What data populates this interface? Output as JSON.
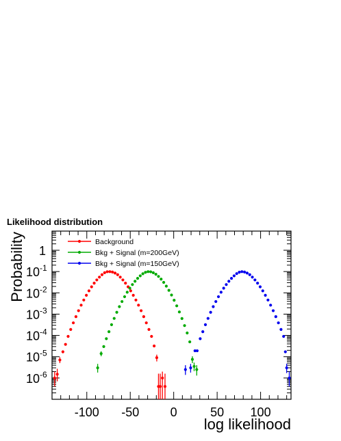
{
  "chart_data": {
    "type": "scatter",
    "title": "Likelihood distribution",
    "xlabel": "log likelihood",
    "ylabel": "Probability",
    "xlim": [
      -140,
      135
    ],
    "ylim_log10": [
      -7,
      0.9
    ],
    "log_y": true,
    "x_ticks": [
      {
        "value": -100,
        "label": "-100"
      },
      {
        "value": -50,
        "label": "-50"
      },
      {
        "value": 0,
        "label": "0"
      },
      {
        "value": 50,
        "label": "50"
      },
      {
        "value": 100,
        "label": "100"
      }
    ],
    "y_ticks": [
      {
        "exp": 0,
        "base": "1",
        "sup": ""
      },
      {
        "exp": -1,
        "base": "10",
        "sup": "-1"
      },
      {
        "exp": -2,
        "base": "10",
        "sup": "-2"
      },
      {
        "exp": -3,
        "base": "10",
        "sup": "-3"
      },
      {
        "exp": -4,
        "base": "10",
        "sup": "-4"
      },
      {
        "exp": -5,
        "base": "10",
        "sup": "-5"
      },
      {
        "exp": -6,
        "base": "10",
        "sup": "-6"
      }
    ],
    "legend_position": "top-left",
    "series": [
      {
        "name": "Background",
        "color": "#ff0000",
        "points": [
          {
            "x": -137,
            "y": 1e-06,
            "elo": 6e-07,
            "ehi": 1e-06
          },
          {
            "x": -134,
            "y": 1.5e-06,
            "elo": 8e-07,
            "ehi": 1.2e-06
          },
          {
            "x": -131,
            "y": 7e-06,
            "elo": 2e-06,
            "ehi": 2.5e-06
          },
          {
            "x": -127.5,
            "y": 1.7e-05,
            "elo": 2.5e-06,
            "ehi": 3e-06
          },
          {
            "x": -124.5,
            "y": 3.8e-05
          },
          {
            "x": -121.5,
            "y": 9e-05
          },
          {
            "x": -118.5,
            "y": 0.00019
          },
          {
            "x": -115.5,
            "y": 0.00039
          },
          {
            "x": -112.5,
            "y": 0.00076
          },
          {
            "x": -109.5,
            "y": 0.00145
          },
          {
            "x": -106.5,
            "y": 0.00264
          },
          {
            "x": -103.5,
            "y": 0.0046
          },
          {
            "x": -100.5,
            "y": 0.0077
          },
          {
            "x": -97.5,
            "y": 0.0124
          },
          {
            "x": -94.5,
            "y": 0.0192
          },
          {
            "x": -91.5,
            "y": 0.0285
          },
          {
            "x": -88.5,
            "y": 0.0404
          },
          {
            "x": -85.5,
            "y": 0.0548
          },
          {
            "x": -82.5,
            "y": 0.0712
          },
          {
            "x": -79.5,
            "y": 0.088
          },
          {
            "x": -76.5,
            "y": 0.098
          },
          {
            "x": -73.5,
            "y": 0.099
          },
          {
            "x": -70.5,
            "y": 0.095
          },
          {
            "x": -67.5,
            "y": 0.085
          },
          {
            "x": -64.5,
            "y": 0.0712
          },
          {
            "x": -61.5,
            "y": 0.0548
          },
          {
            "x": -58.5,
            "y": 0.0404
          },
          {
            "x": -55.5,
            "y": 0.0285
          },
          {
            "x": -52.5,
            "y": 0.0192
          },
          {
            "x": -49.5,
            "y": 0.0124
          },
          {
            "x": -46.5,
            "y": 0.0077
          },
          {
            "x": -43.5,
            "y": 0.0046
          },
          {
            "x": -40.5,
            "y": 0.00264
          },
          {
            "x": -37.5,
            "y": 0.00145
          },
          {
            "x": -34.5,
            "y": 0.00076
          },
          {
            "x": -31.5,
            "y": 0.00039
          },
          {
            "x": -28.5,
            "y": 0.00019
          },
          {
            "x": -25.5,
            "y": 9e-05
          },
          {
            "x": -22.5,
            "y": 3.2e-05
          },
          {
            "x": -19.5,
            "y": 9e-06,
            "elo": 3e-06,
            "ehi": 3.5e-06
          },
          {
            "x": -17.5,
            "y": 4e-07,
            "elo": 3.9e-07,
            "ehi": 1.2e-06
          },
          {
            "x": -15.5,
            "y": 4e-07,
            "elo": 3.9e-07,
            "ehi": 1.2e-06
          },
          {
            "x": -13,
            "y": 1e-06,
            "elo": 9.9e-07,
            "ehi": 1e-06
          },
          {
            "x": -10,
            "y": 4e-07,
            "elo": 3.9e-07,
            "ehi": 1.2e-06
          }
        ]
      },
      {
        "name": "Bkg + Signal (m=200GeV)",
        "color": "#00aa00",
        "points": [
          {
            "x": -87.5,
            "y": 3e-06,
            "elo": 1.2e-06,
            "ehi": 1.6e-06
          },
          {
            "x": -83.5,
            "y": 1.4e-05,
            "elo": 3.5e-06,
            "ehi": 4e-06
          },
          {
            "x": -80.5,
            "y": 3e-05
          },
          {
            "x": -77.5,
            "y": 7e-05
          },
          {
            "x": -74.5,
            "y": 0.00015
          },
          {
            "x": -71.5,
            "y": 0.00032
          },
          {
            "x": -68.5,
            "y": 0.00063
          },
          {
            "x": -65.5,
            "y": 0.00122
          },
          {
            "x": -62.5,
            "y": 0.00224
          },
          {
            "x": -59.5,
            "y": 0.0039
          },
          {
            "x": -56.5,
            "y": 0.0066
          },
          {
            "x": -53.5,
            "y": 0.0107
          },
          {
            "x": -50.5,
            "y": 0.0165
          },
          {
            "x": -47.5,
            "y": 0.0245
          },
          {
            "x": -44.5,
            "y": 0.035
          },
          {
            "x": -41.5,
            "y": 0.048
          },
          {
            "x": -38.5,
            "y": 0.063
          },
          {
            "x": -35.5,
            "y": 0.079
          },
          {
            "x": -32.5,
            "y": 0.092
          },
          {
            "x": -29.5,
            "y": 0.099
          },
          {
            "x": -26.5,
            "y": 0.097
          },
          {
            "x": -23.5,
            "y": 0.088
          },
          {
            "x": -20.5,
            "y": 0.0745
          },
          {
            "x": -17.5,
            "y": 0.059
          },
          {
            "x": -14.5,
            "y": 0.044
          },
          {
            "x": -11.5,
            "y": 0.031
          },
          {
            "x": -8.5,
            "y": 0.0207
          },
          {
            "x": -5.5,
            "y": 0.0131
          },
          {
            "x": -2.5,
            "y": 0.0079
          },
          {
            "x": 0.5,
            "y": 0.0045
          },
          {
            "x": 3.5,
            "y": 0.00245
          },
          {
            "x": 6.5,
            "y": 0.00127
          },
          {
            "x": 9.5,
            "y": 0.00062
          },
          {
            "x": 12.5,
            "y": 0.00029
          },
          {
            "x": 15.5,
            "y": 0.00013
          },
          {
            "x": 18.5,
            "y": 5e-05
          },
          {
            "x": 21.5,
            "y": 7.5e-06,
            "elo": 2.5e-06,
            "ehi": 3e-06
          },
          {
            "x": 23.5,
            "y": 3.5e-06,
            "elo": 1.4e-06,
            "ehi": 1.8e-06
          },
          {
            "x": 26.5,
            "y": 2.5e-06,
            "elo": 1.2e-06,
            "ehi": 1.5e-06
          }
        ]
      },
      {
        "name": "Bkg + Signal (m=150GeV)",
        "color": "#0000ee",
        "points": [
          {
            "x": 13.5,
            "y": 2.5e-06,
            "elo": 1.1e-06,
            "ehi": 1.5e-06
          },
          {
            "x": 19.5,
            "y": 3e-06,
            "elo": 1.2e-06,
            "ehi": 1.6e-06
          },
          {
            "x": 24.5,
            "y": 1.9e-05
          },
          {
            "x": 27,
            "y": 1.9e-05
          },
          {
            "x": 30.5,
            "y": 7e-05
          },
          {
            "x": 33.5,
            "y": 0.00015
          },
          {
            "x": 36.5,
            "y": 0.00032
          },
          {
            "x": 39.5,
            "y": 0.00063
          },
          {
            "x": 42.5,
            "y": 0.00122
          },
          {
            "x": 45.5,
            "y": 0.00224
          },
          {
            "x": 48.5,
            "y": 0.0039
          },
          {
            "x": 51.5,
            "y": 0.0066
          },
          {
            "x": 54.5,
            "y": 0.0107
          },
          {
            "x": 57.5,
            "y": 0.0165
          },
          {
            "x": 60.5,
            "y": 0.0245
          },
          {
            "x": 63.5,
            "y": 0.035
          },
          {
            "x": 66.5,
            "y": 0.048
          },
          {
            "x": 69.5,
            "y": 0.063
          },
          {
            "x": 72.5,
            "y": 0.08
          },
          {
            "x": 75.5,
            "y": 0.093
          },
          {
            "x": 78.5,
            "y": 0.099
          },
          {
            "x": 81.5,
            "y": 0.095
          },
          {
            "x": 84.5,
            "y": 0.085
          },
          {
            "x": 87.5,
            "y": 0.0712
          },
          {
            "x": 90.5,
            "y": 0.0548
          },
          {
            "x": 93.5,
            "y": 0.0404
          },
          {
            "x": 96.5,
            "y": 0.0285
          },
          {
            "x": 99.5,
            "y": 0.0192
          },
          {
            "x": 102.5,
            "y": 0.0124
          },
          {
            "x": 105.5,
            "y": 0.0077
          },
          {
            "x": 108.5,
            "y": 0.0046
          },
          {
            "x": 111.5,
            "y": 0.00264
          },
          {
            "x": 114.5,
            "y": 0.00145
          },
          {
            "x": 117.5,
            "y": 0.00076
          },
          {
            "x": 120.5,
            "y": 0.00039
          },
          {
            "x": 123.5,
            "y": 0.00019
          },
          {
            "x": 126.5,
            "y": 9e-05
          },
          {
            "x": 128.5,
            "y": 1.7e-05
          },
          {
            "x": 130,
            "y": 3e-06,
            "elo": 1.3e-06,
            "ehi": 1.7e-06
          },
          {
            "x": 133,
            "y": 1e-06,
            "elo": 6e-07,
            "ehi": 1e-06
          }
        ]
      }
    ]
  }
}
